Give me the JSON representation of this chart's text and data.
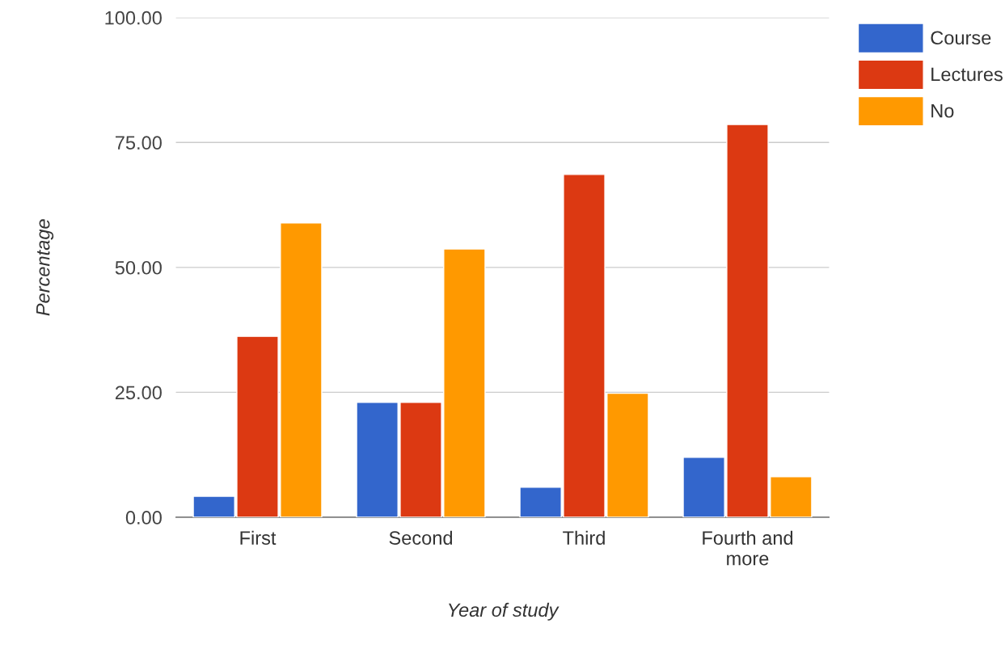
{
  "chart_data": {
    "type": "bar",
    "xlabel": "Year of study",
    "ylabel": "Percentage",
    "categories": [
      "First",
      "Second",
      "Third",
      "Fourth and\nmore"
    ],
    "series": [
      {
        "name": "Course",
        "color": "#3366cc",
        "values": [
          4.2,
          23.0,
          6.0,
          12.0
        ]
      },
      {
        "name": "Lectures",
        "color": "#dc3912",
        "values": [
          36.2,
          23.0,
          68.6,
          78.6
        ]
      },
      {
        "name": "No",
        "color": "#ff9900",
        "values": [
          58.9,
          53.7,
          24.8,
          8.1
        ]
      }
    ],
    "ylim": [
      0,
      100
    ],
    "yticks": [
      {
        "value": 0,
        "label": "0.00"
      },
      {
        "value": 25,
        "label": "25.00"
      },
      {
        "value": 50,
        "label": "50.00"
      },
      {
        "value": 75,
        "label": "75.00"
      },
      {
        "value": 100,
        "label": "100.00"
      }
    ],
    "grid": "y",
    "legend": "top right"
  }
}
